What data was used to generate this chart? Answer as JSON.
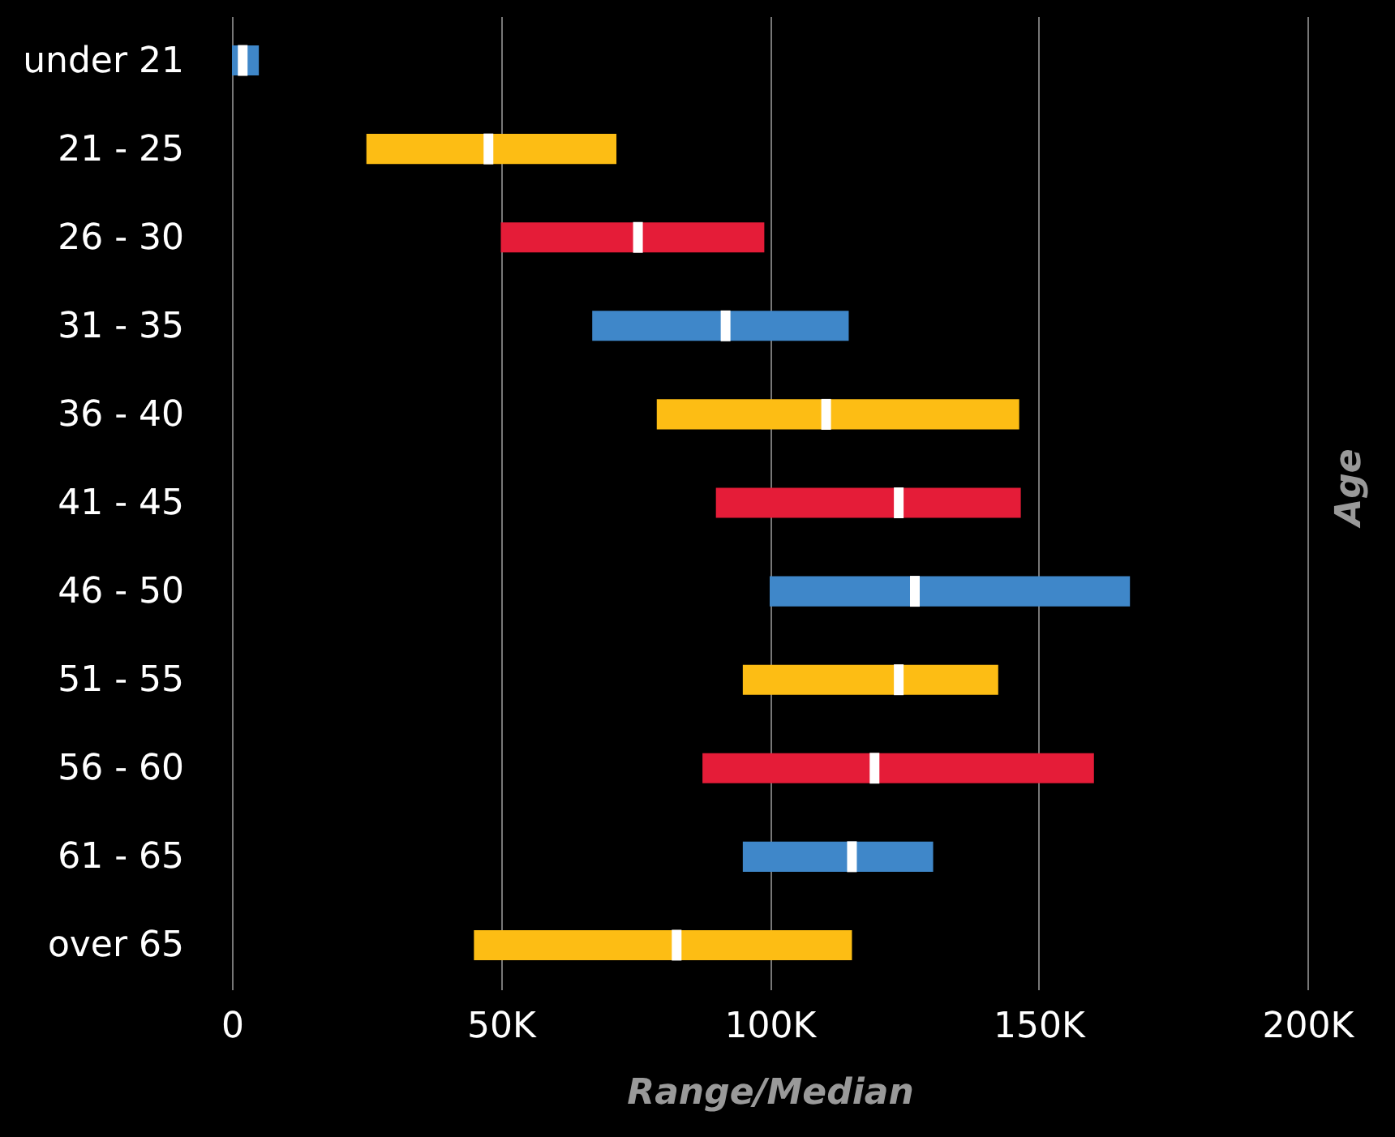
{
  "chart_data": {
    "type": "bar",
    "orientation": "horizontal",
    "xlabel": "Range/Median",
    "ylabel": "Age",
    "categories": [
      "under 21",
      "21 - 25",
      "26 - 30",
      "31 - 35",
      "36 - 40",
      "41 - 45",
      "46 - 50",
      "51 - 55",
      "56 - 60",
      "61 - 65",
      "over 65"
    ],
    "series": [
      {
        "base": [
          0,
          25,
          50,
          67,
          79,
          90,
          100,
          95,
          87.5,
          95,
          45
        ],
        "values": [
          5,
          46.5,
          49,
          47.7,
          67.4,
          56.7,
          67,
          47.5,
          72.8,
          35.4,
          70.3
        ],
        "colors": [
          "#3f87c9",
          "#fdbd14",
          "#e51c38",
          "#3f87c9",
          "#fdbd14",
          "#e51c38",
          "#3f87c9",
          "#fdbd14",
          "#e51c38",
          "#3f87c9",
          "#fdbd14"
        ]
      },
      {
        "type": "scatter",
        "x": [
          "under 21",
          "21 - 25",
          "26 - 30",
          "31 - 35",
          "36 - 40",
          "41 - 45",
          "46 - 50",
          "51 - 55",
          "56 - 60",
          "61 - 65",
          "over 65"
        ],
        "values": [
          2,
          47.7,
          75.5,
          91.8,
          110.5,
          124,
          127,
          124,
          119.5,
          115.3,
          82.7
        ],
        "color": "#ffffff"
      }
    ],
    "xlim": [
      0,
      200
    ],
    "xticks": [
      0,
      {
        "value": 50,
        "label": "50K"
      },
      {
        "value": 100,
        "label": "100K"
      },
      {
        "value": 150,
        "label": "150K"
      },
      {
        "value": 200,
        "label": "200K"
      }
    ],
    "grid": "x"
  }
}
